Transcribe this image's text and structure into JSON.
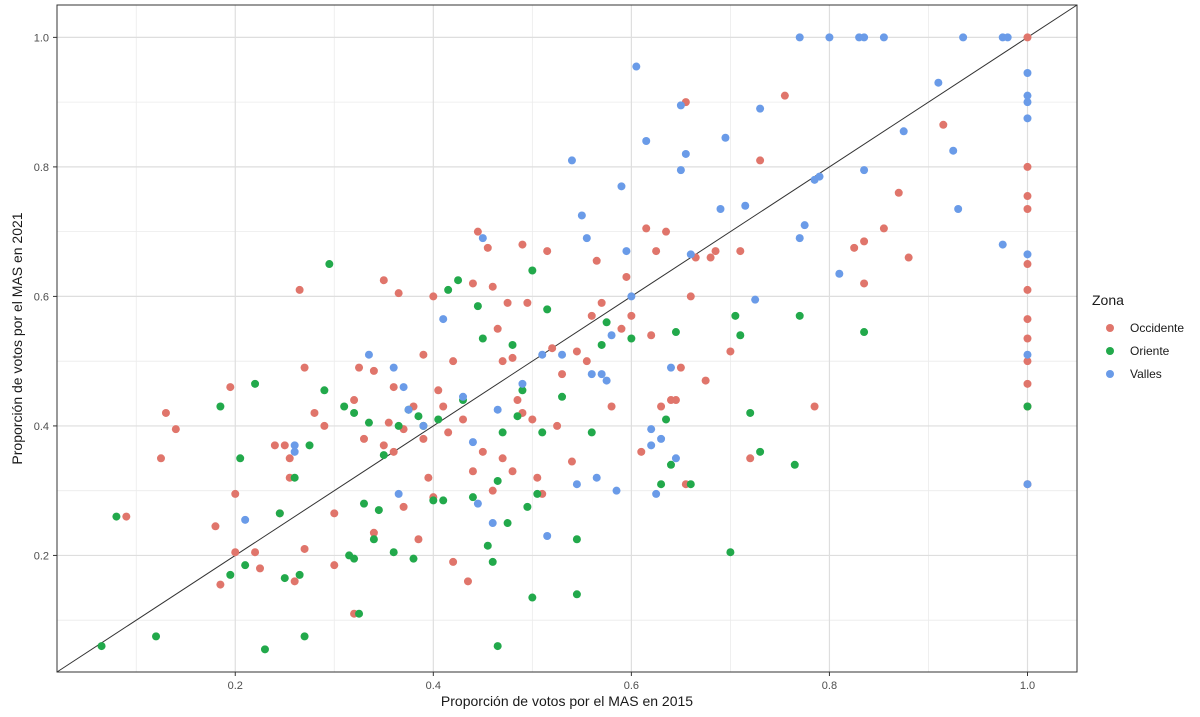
{
  "chart_data": {
    "type": "scatter",
    "title": "",
    "xlabel": "Proporción de votos por el MAS en 2015",
    "ylabel": "Proporción de votos por el MAS en 2021",
    "xlim": [
      0.02,
      1.05
    ],
    "ylim": [
      0.02,
      1.05
    ],
    "x_ticks": [
      0.2,
      0.4,
      0.6,
      0.8,
      1.0
    ],
    "y_ticks": [
      0.2,
      0.4,
      0.6,
      0.8,
      1.0
    ],
    "x_tick_labels": [
      "0.2",
      "0.4",
      "0.6",
      "0.8",
      "1.0"
    ],
    "y_tick_labels": [
      "0.2",
      "0.4",
      "0.6",
      "0.8",
      "1.0"
    ],
    "grid": true,
    "reference_line": {
      "type": "identity",
      "from": [
        0.02,
        0.02
      ],
      "to": [
        1.05,
        1.05
      ],
      "color": "#333333"
    },
    "legend": {
      "title": "Zona",
      "position": "right"
    },
    "series": [
      {
        "name": "Occidente",
        "color": "#E0756B",
        "points": [
          [
            0.09,
            0.26
          ],
          [
            0.125,
            0.35
          ],
          [
            0.13,
            0.42
          ],
          [
            0.14,
            0.395
          ],
          [
            0.18,
            0.245
          ],
          [
            0.185,
            0.155
          ],
          [
            0.195,
            0.46
          ],
          [
            0.2,
            0.295
          ],
          [
            0.2,
            0.205
          ],
          [
            0.22,
            0.205
          ],
          [
            0.225,
            0.18
          ],
          [
            0.24,
            0.37
          ],
          [
            0.245,
            0.265
          ],
          [
            0.25,
            0.37
          ],
          [
            0.255,
            0.35
          ],
          [
            0.255,
            0.32
          ],
          [
            0.26,
            0.16
          ],
          [
            0.265,
            0.61
          ],
          [
            0.27,
            0.21
          ],
          [
            0.27,
            0.49
          ],
          [
            0.28,
            0.42
          ],
          [
            0.29,
            0.4
          ],
          [
            0.3,
            0.265
          ],
          [
            0.3,
            0.185
          ],
          [
            0.32,
            0.44
          ],
          [
            0.32,
            0.11
          ],
          [
            0.325,
            0.49
          ],
          [
            0.33,
            0.38
          ],
          [
            0.34,
            0.485
          ],
          [
            0.34,
            0.235
          ],
          [
            0.35,
            0.37
          ],
          [
            0.35,
            0.625
          ],
          [
            0.355,
            0.405
          ],
          [
            0.36,
            0.46
          ],
          [
            0.36,
            0.36
          ],
          [
            0.365,
            0.605
          ],
          [
            0.37,
            0.275
          ],
          [
            0.37,
            0.395
          ],
          [
            0.38,
            0.43
          ],
          [
            0.385,
            0.225
          ],
          [
            0.39,
            0.51
          ],
          [
            0.39,
            0.38
          ],
          [
            0.395,
            0.32
          ],
          [
            0.4,
            0.29
          ],
          [
            0.4,
            0.6
          ],
          [
            0.405,
            0.455
          ],
          [
            0.41,
            0.43
          ],
          [
            0.415,
            0.39
          ],
          [
            0.42,
            0.5
          ],
          [
            0.42,
            0.19
          ],
          [
            0.43,
            0.41
          ],
          [
            0.435,
            0.16
          ],
          [
            0.44,
            0.62
          ],
          [
            0.44,
            0.33
          ],
          [
            0.445,
            0.7
          ],
          [
            0.45,
            0.36
          ],
          [
            0.455,
            0.675
          ],
          [
            0.46,
            0.615
          ],
          [
            0.46,
            0.3
          ],
          [
            0.465,
            0.55
          ],
          [
            0.47,
            0.5
          ],
          [
            0.47,
            0.35
          ],
          [
            0.475,
            0.59
          ],
          [
            0.48,
            0.505
          ],
          [
            0.48,
            0.33
          ],
          [
            0.485,
            0.44
          ],
          [
            0.49,
            0.68
          ],
          [
            0.49,
            0.42
          ],
          [
            0.495,
            0.59
          ],
          [
            0.5,
            0.41
          ],
          [
            0.505,
            0.32
          ],
          [
            0.51,
            0.295
          ],
          [
            0.515,
            0.67
          ],
          [
            0.52,
            0.52
          ],
          [
            0.525,
            0.4
          ],
          [
            0.53,
            0.48
          ],
          [
            0.54,
            0.345
          ],
          [
            0.545,
            0.515
          ],
          [
            0.555,
            0.5
          ],
          [
            0.56,
            0.57
          ],
          [
            0.565,
            0.655
          ],
          [
            0.57,
            0.59
          ],
          [
            0.58,
            0.43
          ],
          [
            0.59,
            0.55
          ],
          [
            0.595,
            0.63
          ],
          [
            0.6,
            0.57
          ],
          [
            0.61,
            0.36
          ],
          [
            0.615,
            0.705
          ],
          [
            0.62,
            0.54
          ],
          [
            0.625,
            0.67
          ],
          [
            0.63,
            0.43
          ],
          [
            0.635,
            0.7
          ],
          [
            0.64,
            0.44
          ],
          [
            0.645,
            0.44
          ],
          [
            0.65,
            0.49
          ],
          [
            0.655,
            0.9
          ],
          [
            0.655,
            0.31
          ],
          [
            0.66,
            0.6
          ],
          [
            0.665,
            0.66
          ],
          [
            0.68,
            0.66
          ],
          [
            0.685,
            0.67
          ],
          [
            0.675,
            0.47
          ],
          [
            0.7,
            0.515
          ],
          [
            0.71,
            0.67
          ],
          [
            0.72,
            0.35
          ],
          [
            0.73,
            0.81
          ],
          [
            0.755,
            0.91
          ],
          [
            0.785,
            0.43
          ],
          [
            0.825,
            0.675
          ],
          [
            0.835,
            0.685
          ],
          [
            0.835,
            0.62
          ],
          [
            0.855,
            0.705
          ],
          [
            0.87,
            0.76
          ],
          [
            0.88,
            0.66
          ],
          [
            0.915,
            0.865
          ],
          [
            1.0,
            1.0
          ],
          [
            1.0,
            0.8
          ],
          [
            1.0,
            0.755
          ],
          [
            1.0,
            0.735
          ],
          [
            1.0,
            0.65
          ],
          [
            1.0,
            0.61
          ],
          [
            1.0,
            0.565
          ],
          [
            1.0,
            0.535
          ],
          [
            1.0,
            0.5
          ],
          [
            1.0,
            0.465
          ],
          [
            1.0,
            0.43
          ],
          [
            1.0,
            0.31
          ]
        ]
      },
      {
        "name": "Oriente",
        "color": "#22A94B",
        "points": [
          [
            0.065,
            0.06
          ],
          [
            0.08,
            0.26
          ],
          [
            0.12,
            0.075
          ],
          [
            0.185,
            0.43
          ],
          [
            0.195,
            0.17
          ],
          [
            0.205,
            0.35
          ],
          [
            0.21,
            0.185
          ],
          [
            0.22,
            0.465
          ],
          [
            0.23,
            0.055
          ],
          [
            0.245,
            0.265
          ],
          [
            0.25,
            0.165
          ],
          [
            0.26,
            0.32
          ],
          [
            0.265,
            0.17
          ],
          [
            0.27,
            0.075
          ],
          [
            0.275,
            0.37
          ],
          [
            0.29,
            0.455
          ],
          [
            0.295,
            0.65
          ],
          [
            0.31,
            0.43
          ],
          [
            0.315,
            0.2
          ],
          [
            0.32,
            0.42
          ],
          [
            0.32,
            0.195
          ],
          [
            0.325,
            0.11
          ],
          [
            0.33,
            0.28
          ],
          [
            0.335,
            0.405
          ],
          [
            0.34,
            0.225
          ],
          [
            0.345,
            0.27
          ],
          [
            0.35,
            0.355
          ],
          [
            0.36,
            0.205
          ],
          [
            0.365,
            0.4
          ],
          [
            0.375,
            0.425
          ],
          [
            0.38,
            0.195
          ],
          [
            0.385,
            0.415
          ],
          [
            0.39,
            0.4
          ],
          [
            0.4,
            0.285
          ],
          [
            0.405,
            0.41
          ],
          [
            0.41,
            0.285
          ],
          [
            0.415,
            0.61
          ],
          [
            0.425,
            0.625
          ],
          [
            0.43,
            0.44
          ],
          [
            0.44,
            0.29
          ],
          [
            0.445,
            0.585
          ],
          [
            0.45,
            0.535
          ],
          [
            0.455,
            0.215
          ],
          [
            0.46,
            0.19
          ],
          [
            0.465,
            0.06
          ],
          [
            0.465,
            0.315
          ],
          [
            0.47,
            0.39
          ],
          [
            0.475,
            0.25
          ],
          [
            0.48,
            0.525
          ],
          [
            0.485,
            0.415
          ],
          [
            0.49,
            0.455
          ],
          [
            0.495,
            0.275
          ],
          [
            0.5,
            0.64
          ],
          [
            0.5,
            0.135
          ],
          [
            0.505,
            0.295
          ],
          [
            0.51,
            0.39
          ],
          [
            0.515,
            0.58
          ],
          [
            0.53,
            0.445
          ],
          [
            0.545,
            0.225
          ],
          [
            0.545,
            0.14
          ],
          [
            0.56,
            0.39
          ],
          [
            0.57,
            0.525
          ],
          [
            0.575,
            0.56
          ],
          [
            0.6,
            0.535
          ],
          [
            0.63,
            0.31
          ],
          [
            0.635,
            0.41
          ],
          [
            0.64,
            0.34
          ],
          [
            0.645,
            0.545
          ],
          [
            0.66,
            0.31
          ],
          [
            0.7,
            0.205
          ],
          [
            0.705,
            0.57
          ],
          [
            0.71,
            0.54
          ],
          [
            0.72,
            0.42
          ],
          [
            0.73,
            0.36
          ],
          [
            0.765,
            0.34
          ],
          [
            0.77,
            0.57
          ],
          [
            0.835,
            0.545
          ],
          [
            1.0,
            0.43
          ]
        ]
      },
      {
        "name": "Valles",
        "color": "#6A9BE8",
        "points": [
          [
            0.21,
            0.255
          ],
          [
            0.26,
            0.37
          ],
          [
            0.26,
            0.36
          ],
          [
            0.335,
            0.51
          ],
          [
            0.36,
            0.49
          ],
          [
            0.365,
            0.295
          ],
          [
            0.37,
            0.46
          ],
          [
            0.375,
            0.425
          ],
          [
            0.39,
            0.4
          ],
          [
            0.41,
            0.565
          ],
          [
            0.43,
            0.445
          ],
          [
            0.44,
            0.375
          ],
          [
            0.445,
            0.28
          ],
          [
            0.45,
            0.69
          ],
          [
            0.46,
            0.25
          ],
          [
            0.465,
            0.425
          ],
          [
            0.49,
            0.465
          ],
          [
            0.51,
            0.51
          ],
          [
            0.515,
            0.23
          ],
          [
            0.53,
            0.51
          ],
          [
            0.54,
            0.81
          ],
          [
            0.545,
            0.31
          ],
          [
            0.55,
            0.725
          ],
          [
            0.555,
            0.69
          ],
          [
            0.56,
            0.48
          ],
          [
            0.565,
            0.32
          ],
          [
            0.57,
            0.48
          ],
          [
            0.575,
            0.47
          ],
          [
            0.58,
            0.54
          ],
          [
            0.585,
            0.3
          ],
          [
            0.59,
            0.77
          ],
          [
            0.595,
            0.67
          ],
          [
            0.6,
            0.6
          ],
          [
            0.605,
            0.955
          ],
          [
            0.615,
            0.84
          ],
          [
            0.62,
            0.395
          ],
          [
            0.62,
            0.37
          ],
          [
            0.625,
            0.295
          ],
          [
            0.63,
            0.38
          ],
          [
            0.64,
            0.49
          ],
          [
            0.645,
            0.35
          ],
          [
            0.65,
            0.895
          ],
          [
            0.65,
            0.795
          ],
          [
            0.655,
            0.82
          ],
          [
            0.66,
            0.665
          ],
          [
            0.69,
            0.735
          ],
          [
            0.695,
            0.845
          ],
          [
            0.715,
            0.74
          ],
          [
            0.725,
            0.595
          ],
          [
            0.73,
            0.89
          ],
          [
            0.77,
            1.0
          ],
          [
            0.77,
            0.69
          ],
          [
            0.775,
            0.71
          ],
          [
            0.785,
            0.78
          ],
          [
            0.79,
            0.785
          ],
          [
            0.8,
            1.0
          ],
          [
            0.81,
            0.635
          ],
          [
            0.83,
            1.0
          ],
          [
            0.835,
            1.0
          ],
          [
            0.835,
            0.795
          ],
          [
            0.855,
            1.0
          ],
          [
            0.875,
            0.855
          ],
          [
            0.91,
            0.93
          ],
          [
            0.925,
            0.825
          ],
          [
            0.93,
            0.735
          ],
          [
            0.935,
            1.0
          ],
          [
            0.975,
            1.0
          ],
          [
            0.975,
            0.68
          ],
          [
            0.98,
            1.0
          ],
          [
            1.0,
            0.945
          ],
          [
            1.0,
            0.91
          ],
          [
            1.0,
            0.9
          ],
          [
            1.0,
            0.875
          ],
          [
            1.0,
            0.665
          ],
          [
            1.0,
            0.51
          ],
          [
            1.0,
            0.31
          ]
        ]
      }
    ]
  }
}
